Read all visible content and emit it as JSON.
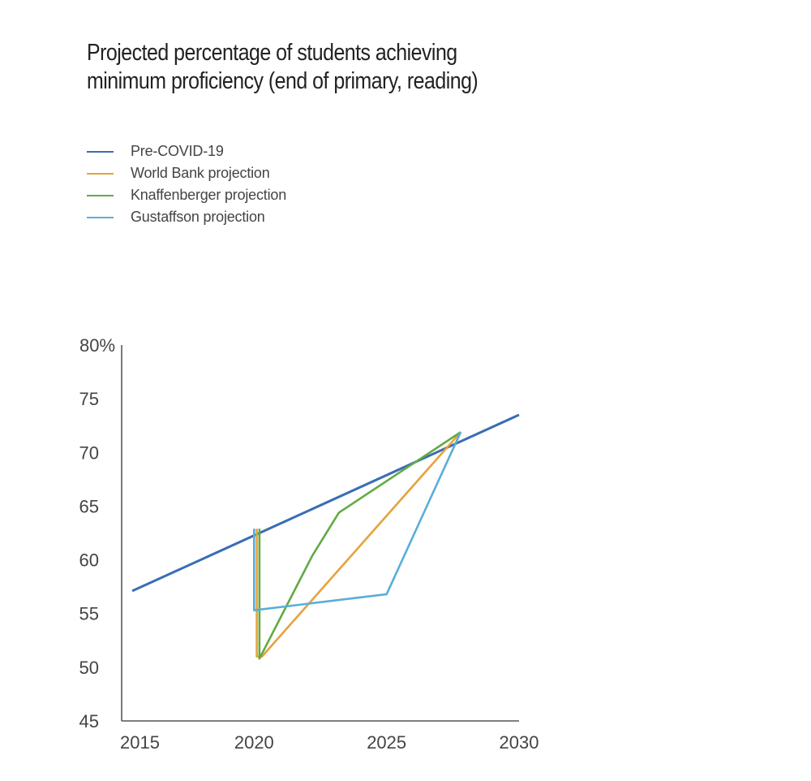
{
  "chart_data": {
    "type": "line",
    "title_lines": [
      "Projected percentage of students achieving",
      "minimum proficiency (end of primary, reading)"
    ],
    "xlabel": "",
    "ylabel": "",
    "xlim": [
      2015,
      2030
    ],
    "ylim": [
      45,
      80
    ],
    "x_ticks": [
      2015,
      2020,
      2025,
      2030
    ],
    "x_tick_labels": [
      "2015",
      "2020",
      "2025",
      "2030"
    ],
    "y_ticks": [
      45,
      50,
      55,
      60,
      65,
      70,
      75,
      80
    ],
    "y_tick_labels": [
      "45",
      "50",
      "55",
      "60",
      "65",
      "70",
      "75",
      "80%"
    ],
    "legend_position": "top-left",
    "series": [
      {
        "name": "Pre-COVID-19",
        "color": "#3a6db3",
        "points": [
          [
            2015.4,
            57.1
          ],
          [
            2030,
            73.5
          ]
        ]
      },
      {
        "name": "World Bank projection",
        "color": "#e6a23c",
        "points": [
          [
            2020.1,
            62.9
          ],
          [
            2020.1,
            51.0
          ],
          [
            2020.3,
            51.0
          ],
          [
            2027.8,
            71.9
          ]
        ]
      },
      {
        "name": "Knaffenberger projection",
        "color": "#62aa44",
        "points": [
          [
            2020.2,
            62.9
          ],
          [
            2020.2,
            50.8
          ],
          [
            2022.2,
            60.4
          ],
          [
            2023.2,
            64.4
          ],
          [
            2027.8,
            71.9
          ]
        ]
      },
      {
        "name": "Gustaffson projection",
        "color": "#5aaed8",
        "points": [
          [
            2020.0,
            62.9
          ],
          [
            2020.0,
            55.3
          ],
          [
            2025.0,
            56.8
          ],
          [
            2027.8,
            71.9
          ]
        ]
      }
    ]
  }
}
